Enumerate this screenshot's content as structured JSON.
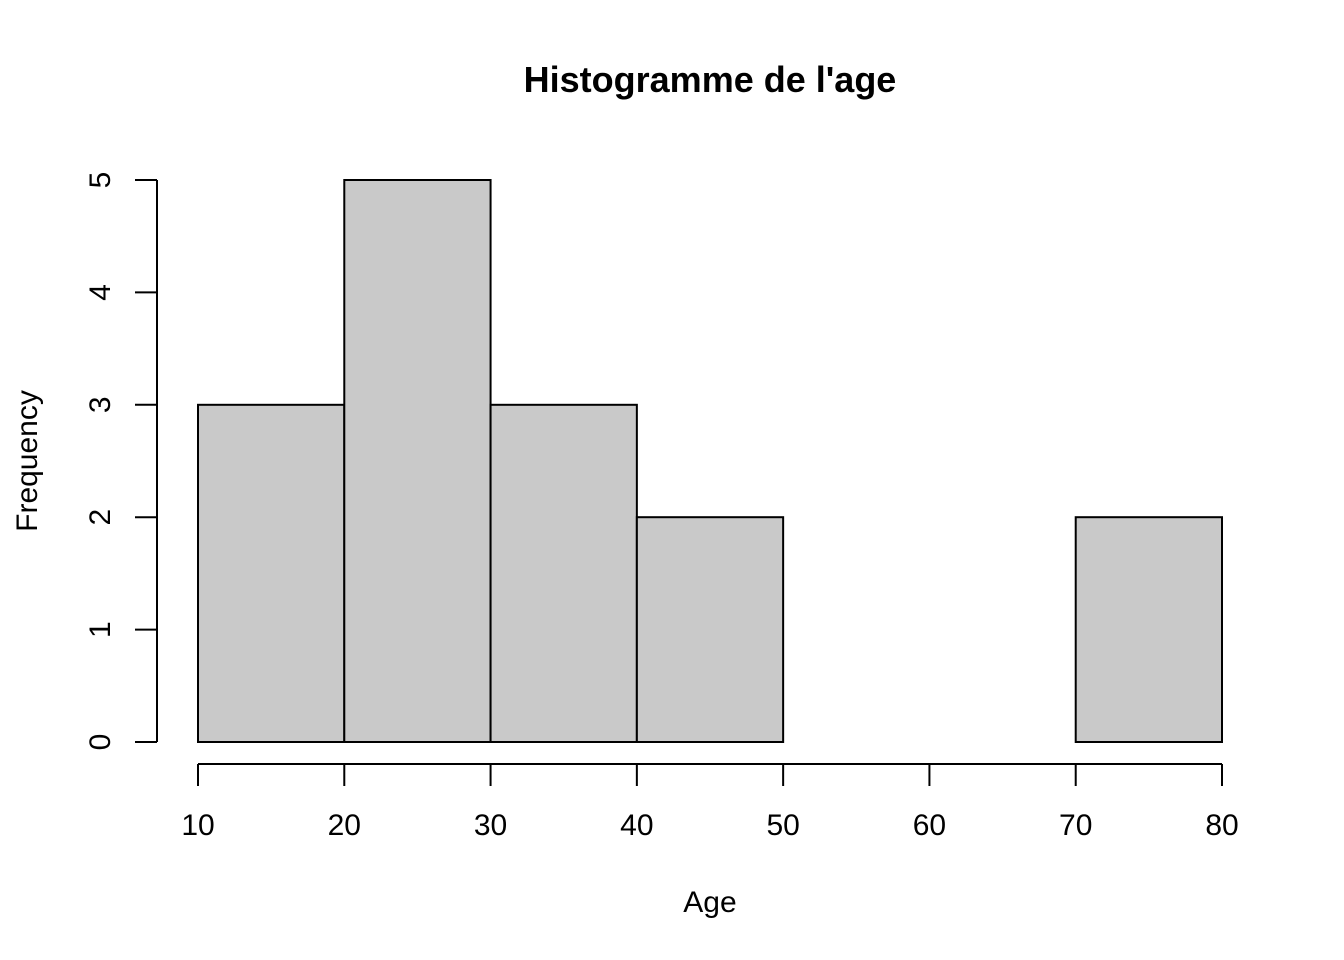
{
  "chart_data": {
    "type": "histogram",
    "title": "Histogramme de l'age",
    "xlabel": "Age",
    "ylabel": "Frequency",
    "bin_edges": [
      10,
      20,
      30,
      40,
      50,
      60,
      70,
      80
    ],
    "counts": [
      3,
      5,
      3,
      2,
      0,
      0,
      2
    ],
    "x_ticks": [
      "10",
      "20",
      "30",
      "40",
      "50",
      "60",
      "70",
      "80"
    ],
    "y_ticks": [
      "0",
      "1",
      "2",
      "3",
      "4",
      "5"
    ],
    "xlim": [
      10,
      80
    ],
    "ylim": [
      0,
      5
    ],
    "grid": false,
    "bar_color": "#c9c9c9",
    "edge_color": "#000000"
  }
}
